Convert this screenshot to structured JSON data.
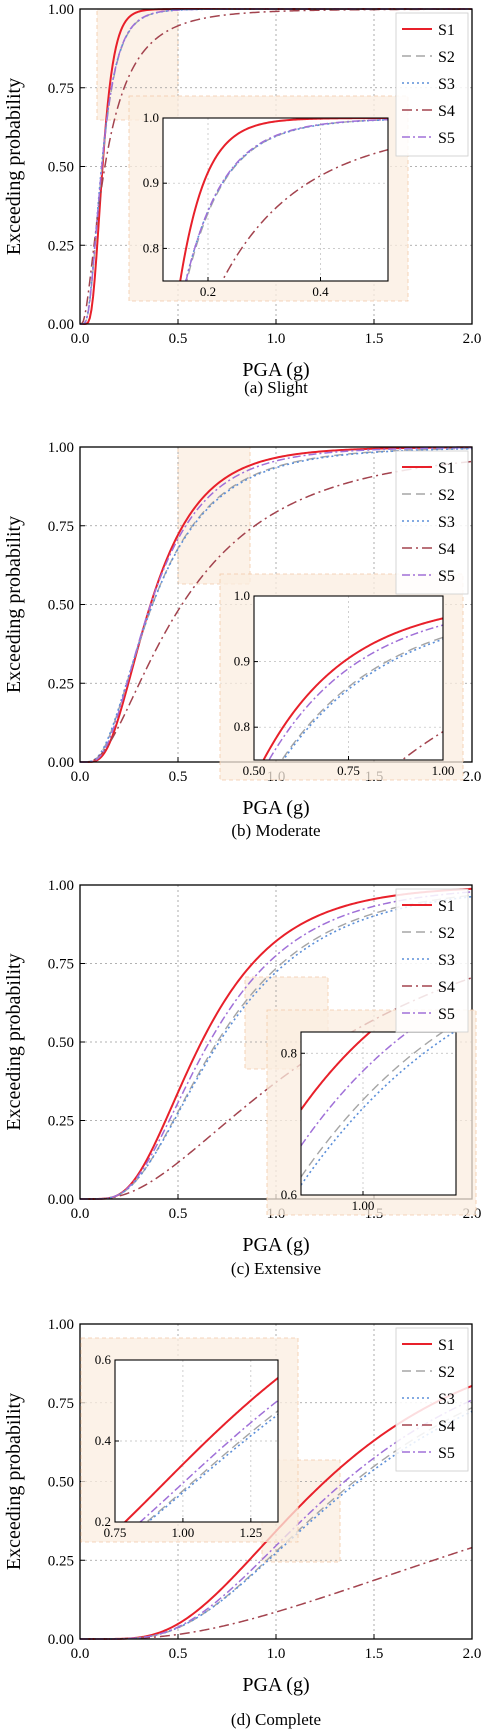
{
  "colors": {
    "S1": "#e8202a",
    "S2": "#a5a5a5",
    "S3": "#5b8fd9",
    "S4": "#a3434e",
    "S5": "#a070d8",
    "zoom": "#fbeee0"
  },
  "chart_data": [
    {
      "type": "line",
      "caption": "(a)  Slight",
      "xlabel": "PGA (g)",
      "ylabel": "Exceeding probability",
      "xlim": [
        0,
        2
      ],
      "ylim": [
        0,
        1
      ],
      "xticks": [
        "0.0",
        "0.5",
        "1.0",
        "1.5",
        "2.0"
      ],
      "yticks": [
        "0.00",
        "0.25",
        "0.50",
        "0.75",
        "1.00"
      ],
      "grid": true,
      "legend": "top-right",
      "series": [
        {
          "name": "S1",
          "median": 0.115,
          "beta": 0.4
        },
        {
          "name": "S2",
          "median": 0.112,
          "beta": 0.55
        },
        {
          "name": "S3",
          "median": 0.11,
          "beta": 0.56
        },
        {
          "name": "S4",
          "median": 0.127,
          "beta": 0.85
        },
        {
          "name": "S5",
          "median": 0.111,
          "beta": 0.55
        }
      ],
      "inset": {
        "xlim": [
          0.12,
          0.52
        ],
        "ylim": [
          0.75,
          1.0
        ],
        "xticks": [
          "0.2",
          "0.4"
        ],
        "xtick_vals": [
          0.2,
          0.4
        ],
        "yticks": [
          "0.8",
          "0.9",
          "1.0"
        ],
        "ytick_vals": [
          0.8,
          0.9,
          1.0
        ]
      }
    },
    {
      "type": "line",
      "caption": "(b)  Moderate",
      "xlabel": "PGA (g)",
      "ylabel": "Exceeding probability",
      "xlim": [
        0,
        2
      ],
      "ylim": [
        0,
        1
      ],
      "xticks": [
        "0.0",
        "0.5",
        "1.0",
        "1.5",
        "2.0"
      ],
      "yticks": [
        "0.00",
        "0.25",
        "0.50",
        "0.75",
        "1.00"
      ],
      "grid": true,
      "legend": "top-right",
      "series": [
        {
          "name": "S1",
          "median": 0.36,
          "beta": 0.56
        },
        {
          "name": "S2",
          "median": 0.37,
          "beta": 0.65
        },
        {
          "name": "S3",
          "median": 0.37,
          "beta": 0.66
        },
        {
          "name": "S4",
          "median": 0.52,
          "beta": 0.8
        },
        {
          "name": "S5",
          "median": 0.36,
          "beta": 0.6
        }
      ],
      "inset": {
        "xlim": [
          0.5,
          1.0
        ],
        "ylim": [
          0.75,
          1.0
        ],
        "xticks": [
          "0.50",
          "0.75",
          "1.00"
        ],
        "xtick_vals": [
          0.5,
          0.75,
          1.0
        ],
        "yticks": [
          "0.8",
          "0.9",
          "1.0"
        ],
        "ytick_vals": [
          0.8,
          0.9,
          1.0
        ]
      }
    },
    {
      "type": "line",
      "caption": "(c)  Extensive",
      "xlabel": "PGA (g)",
      "ylabel": "Exceeding probability",
      "xlim": [
        0,
        2
      ],
      "ylim": [
        0,
        1
      ],
      "xticks": [
        "0.0",
        "0.5",
        "1.0",
        "1.5",
        "2.0"
      ],
      "yticks": [
        "0.00",
        "0.25",
        "0.50",
        "0.75",
        "1.00"
      ],
      "grid": true,
      "legend": "top-right",
      "series": [
        {
          "name": "S1",
          "median": 0.62,
          "beta": 0.52
        },
        {
          "name": "S2",
          "median": 0.7,
          "beta": 0.57
        },
        {
          "name": "S3",
          "median": 0.71,
          "beta": 0.58
        },
        {
          "name": "S4",
          "median": 1.3,
          "beta": 0.8
        },
        {
          "name": "S5",
          "median": 0.66,
          "beta": 0.55
        }
      ],
      "inset": {
        "xlim": [
          0.84,
          1.24
        ],
        "ylim": [
          0.6,
          0.83
        ],
        "xticks": [
          "1.00"
        ],
        "xtick_vals": [
          1.0
        ],
        "yticks": [
          "0.6",
          "0.8"
        ],
        "ytick_vals": [
          0.6,
          0.8
        ]
      }
    },
    {
      "type": "line",
      "caption": "(d)  Complete",
      "xlabel": "PGA (g)",
      "ylabel": "Exceeding probability",
      "xlim": [
        0,
        2
      ],
      "ylim": [
        0,
        1
      ],
      "xticks": [
        "0.0",
        "0.5",
        "1.0",
        "1.5",
        "2.0"
      ],
      "yticks": [
        "0.00",
        "0.25",
        "0.50",
        "0.75",
        "1.00"
      ],
      "grid": true,
      "legend": "top-right",
      "series": [
        {
          "name": "S1",
          "median": 1.25,
          "beta": 0.55
        },
        {
          "name": "S2",
          "median": 1.4,
          "beta": 0.57
        },
        {
          "name": "S3",
          "median": 1.42,
          "beta": 0.58
        },
        {
          "name": "S4",
          "median": 3.2,
          "beta": 0.85
        },
        {
          "name": "S5",
          "median": 1.35,
          "beta": 0.56
        }
      ],
      "inset": {
        "xlim": [
          0.75,
          1.35
        ],
        "ylim": [
          0.2,
          0.6
        ],
        "xticks": [
          "0.75",
          "1.00",
          "1.25"
        ],
        "xtick_vals": [
          0.75,
          1.0,
          1.25
        ],
        "yticks": [
          "0.2",
          "0.4",
          "0.6"
        ],
        "ytick_vals": [
          0.2,
          0.4,
          0.6
        ]
      }
    }
  ]
}
